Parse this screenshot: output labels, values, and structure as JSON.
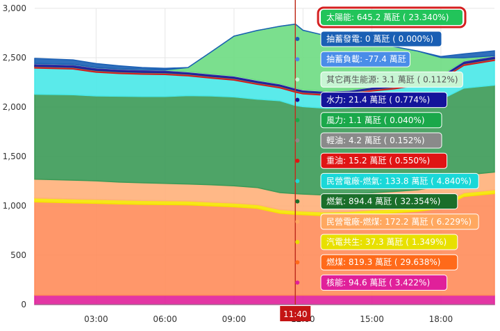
{
  "chart_data": {
    "type": "area",
    "stacked": true,
    "ylim": [
      0,
      3000
    ],
    "yticks": [
      "0",
      "500",
      "1,000",
      "1,500",
      "2,000",
      "2,500",
      "3,000"
    ],
    "ytick_values": [
      0,
      500,
      1000,
      1500,
      2000,
      2500,
      3000
    ],
    "xticks": [
      "03:00",
      "06:00",
      "09:00",
      "12:00",
      "15:00",
      "18:00"
    ],
    "xtick_hours": [
      3,
      6,
      9,
      12,
      15,
      18
    ],
    "xlim_hours": [
      0.33,
      20.33
    ],
    "grid": true,
    "crosshair": {
      "label": "11:40",
      "hour": 11.667
    },
    "x_hours": [
      0.33,
      2,
      3,
      4,
      5,
      6,
      7,
      8,
      9,
      10,
      11,
      11.67,
      12,
      13,
      14,
      15,
      16,
      17,
      18,
      19,
      20.33
    ],
    "series": [
      {
        "key": "nuclear",
        "color": "#e0209a",
        "values": [
          95,
          95,
          95,
          95,
          95,
          95,
          95,
          95,
          95,
          95,
          95,
          95,
          95,
          95,
          95,
          95,
          95,
          95,
          95,
          95,
          95
        ]
      },
      {
        "key": "coal",
        "color": "#ff8c5a",
        "values": [
          945,
          935,
          930,
          925,
          920,
          918,
          915,
          905,
          895,
          880,
          830,
          819,
          815,
          805,
          810,
          825,
          835,
          850,
          880,
          1000,
          1030
        ]
      },
      {
        "key": "cogen",
        "color": "#f5e400",
        "values": [
          40,
          40,
          40,
          40,
          40,
          39,
          39,
          38,
          38,
          38,
          37,
          37,
          37,
          37,
          37,
          37,
          37,
          37,
          37,
          37,
          37
        ]
      },
      {
        "key": "ipp_coal",
        "color": "#ffb07a",
        "values": [
          190,
          190,
          188,
          180,
          178,
          175,
          172,
          175,
          175,
          172,
          172,
          172,
          172,
          172,
          172,
          175,
          178,
          180,
          185,
          180,
          180
        ]
      },
      {
        "key": "lng",
        "color": "#3b9a57",
        "values": [
          860,
          865,
          860,
          870,
          875,
          880,
          895,
          900,
          900,
          895,
          930,
          894,
          885,
          880,
          880,
          880,
          880,
          880,
          880,
          880,
          880
        ]
      },
      {
        "key": "ipp_lng",
        "color": "#48e8e8",
        "values": [
          265,
          260,
          240,
          230,
          225,
          222,
          200,
          180,
          170,
          150,
          130,
          134,
          130,
          130,
          135,
          150,
          160,
          180,
          200,
          230,
          250
        ]
      },
      {
        "key": "oil_fuel",
        "color": "#d11a1a",
        "values": [
          15,
          15,
          15,
          15,
          15,
          15,
          15,
          15,
          15,
          15,
          15,
          15,
          15,
          15,
          15,
          15,
          15,
          15,
          15,
          15,
          15
        ]
      },
      {
        "key": "diesel",
        "color": "#7a7a7a",
        "values": [
          4,
          4,
          4,
          4,
          4,
          4,
          4,
          4,
          4,
          4,
          4,
          4,
          4,
          4,
          4,
          4,
          4,
          4,
          4,
          4,
          4
        ]
      },
      {
        "key": "wind",
        "color": "#1aa84a",
        "values": [
          1,
          1,
          1,
          1,
          1,
          1,
          1,
          1,
          1,
          1,
          1,
          1,
          1,
          1,
          1,
          1,
          1,
          1,
          1,
          1,
          1
        ]
      },
      {
        "key": "hydro",
        "color": "#1a1a9a",
        "values": [
          25,
          25,
          25,
          25,
          25,
          25,
          22,
          22,
          22,
          22,
          21,
          21,
          21,
          21,
          21,
          21,
          22,
          22,
          22,
          24,
          25
        ]
      },
      {
        "key": "other_re",
        "color": "#b8f0c8",
        "values": [
          3,
          3,
          3,
          3,
          3,
          3,
          3,
          3,
          3,
          3,
          3,
          3,
          3,
          3,
          3,
          3,
          3,
          3,
          3,
          3,
          3
        ]
      },
      {
        "key": "solar",
        "color": "#6ddc82",
        "values": [
          0,
          0,
          0,
          0,
          0,
          0,
          40,
          220,
          400,
          500,
          580,
          645,
          600,
          560,
          530,
          450,
          380,
          300,
          180,
          30,
          0
        ]
      },
      {
        "key": "pumped_gen",
        "color": "#1a5fb4",
        "values": [
          50,
          45,
          40,
          30,
          20,
          15,
          0,
          0,
          0,
          0,
          0,
          0,
          0,
          0,
          0,
          0,
          0,
          0,
          10,
          40,
          50
        ]
      }
    ],
    "tooltip": {
      "selected": {
        "label": "太陽能: 645.2 萬瓩 ( 23.340%)",
        "color": "#22c45a",
        "border": "#d42020"
      },
      "items": [
        {
          "label": "抽蓄發電: 0 萬瓩 ( 0.000%)",
          "color": "#1a5fb4",
          "text_color": "#ffffff"
        },
        {
          "label": "抽蓄負載: -77.4 萬瓩",
          "color": "#4a8de8",
          "text_color": "#ffffff"
        },
        {
          "label": "其它再生能源: 3.1 萬瓩 ( 0.112%)",
          "color": "#c8f5d4",
          "text_color": "#555555"
        },
        {
          "label": "水力: 21.4 萬瓩 ( 0.774%)",
          "color": "#14149a",
          "text_color": "#ffffff"
        },
        {
          "label": "風力: 1.1 萬瓩 ( 0.040%)",
          "color": "#1aa84a",
          "text_color": "#ffffff"
        },
        {
          "label": "輕油: 4.2 萬瓩 ( 0.152%)",
          "color": "#8a8a8a",
          "text_color": "#ffffff"
        },
        {
          "label": "重油: 15.2 萬瓩 ( 0.550%)",
          "color": "#e01414",
          "text_color": "#ffffff"
        },
        {
          "label": "民營電廠-燃氣: 133.8 萬瓩 ( 4.840%)",
          "color": "#1ad8d8",
          "text_color": "#ffffff"
        },
        {
          "label": "燃氣: 894.4 萬瓩 ( 32.354%)",
          "color": "#1a6e2a",
          "text_color": "#ffffff"
        },
        {
          "label": "民營電廠-燃煤: 172.2 萬瓩 ( 6.229%)",
          "color": "#ffa860",
          "text_color": "#ffffff"
        },
        {
          "label": "汽電共生: 37.3 萬瓩 ( 1.349%)",
          "color": "#e8e000",
          "text_color": "#ffffff"
        },
        {
          "label": "燃煤: 819.3 萬瓩 ( 29.638%)",
          "color": "#ff6a1a",
          "text_color": "#ffffff"
        },
        {
          "label": "核能: 94.6 萬瓩 ( 3.422%)",
          "color": "#e0209a",
          "text_color": "#ffffff"
        }
      ]
    }
  }
}
